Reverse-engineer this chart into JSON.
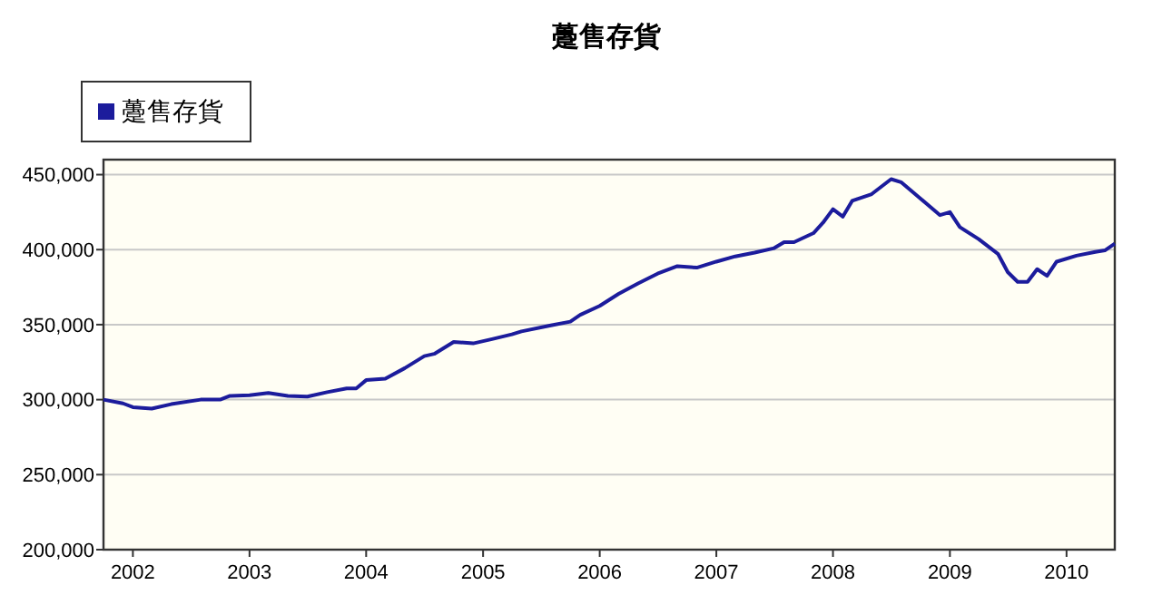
{
  "chart_data": {
    "type": "line",
    "title": "躉售存貨",
    "legend": "top left",
    "grid": "y",
    "xlim": [
      "2001-10",
      "2010-06"
    ],
    "xticks": [
      {
        "value": "2002-01",
        "label": "2002"
      },
      {
        "value": "2003-01",
        "label": "2003"
      },
      {
        "value": "2004-01",
        "label": "2004"
      },
      {
        "value": "2005-01",
        "label": "2005"
      },
      {
        "value": "2006-01",
        "label": "2006"
      },
      {
        "value": "2007-01",
        "label": "2007"
      },
      {
        "value": "2008-01",
        "label": "2008"
      },
      {
        "value": "2009-01",
        "label": "2009"
      },
      {
        "value": "2010-01",
        "label": "2010"
      }
    ],
    "ylim": [
      200000,
      460000
    ],
    "yticks": [
      {
        "value": 200000,
        "label": "200,000"
      },
      {
        "value": 250000,
        "label": "250,000"
      },
      {
        "value": 300000,
        "label": "300,000"
      },
      {
        "value": 350000,
        "label": "350,000"
      },
      {
        "value": 400000,
        "label": "400,000"
      },
      {
        "value": 450000,
        "label": "450,000"
      }
    ],
    "x": [
      "2001-10",
      "2001-12",
      "2002-01",
      "2002-03",
      "2002-05",
      "2002-08",
      "2002-10",
      "2002-11",
      "2003-01",
      "2003-03",
      "2003-05",
      "2003-07",
      "2003-09",
      "2003-11",
      "2003-12",
      "2004-01",
      "2004-03",
      "2004-05",
      "2004-07",
      "2004-08",
      "2004-10",
      "2004-12",
      "2005-02",
      "2005-04",
      "2005-05",
      "2005-08",
      "2005-10",
      "2005-11",
      "2006-01",
      "2006-03",
      "2006-05",
      "2006-07",
      "2006-09",
      "2006-11",
      "2007-01",
      "2007-03",
      "2007-05",
      "2007-07",
      "2007-08",
      "2007-09",
      "2007-11",
      "2007-12",
      "2008-01",
      "2008-02",
      "2008-03",
      "2008-05",
      "2008-07",
      "2008-08",
      "2008-10",
      "2008-12",
      "2009-01",
      "2009-02",
      "2009-04",
      "2009-06",
      "2009-07",
      "2009-08",
      "2009-09",
      "2009-10",
      "2009-11",
      "2009-12",
      "2010-02",
      "2010-04",
      "2010-05",
      "2010-06"
    ],
    "series": [
      {
        "name": "躉售存貨",
        "color": "#1c1c9c",
        "values": [
          300000,
          297500,
          295000,
          294000,
          297000,
          300000,
          300000,
          302500,
          303000,
          304500,
          302500,
          302000,
          305000,
          307500,
          307500,
          313000,
          314000,
          321000,
          329000,
          330500,
          338500,
          337500,
          340500,
          343500,
          345500,
          349500,
          352000,
          356500,
          362500,
          370500,
          377500,
          384000,
          389000,
          388000,
          392000,
          395500,
          398000,
          401000,
          405000,
          405000,
          411000,
          418000,
          427000,
          422000,
          432500,
          437000,
          447000,
          445000,
          434000,
          423000,
          425000,
          415000,
          407000,
          397000,
          385000,
          378500,
          378500,
          387000,
          382500,
          392000,
          396000,
          398500,
          399500,
          404000
        ]
      }
    ]
  }
}
